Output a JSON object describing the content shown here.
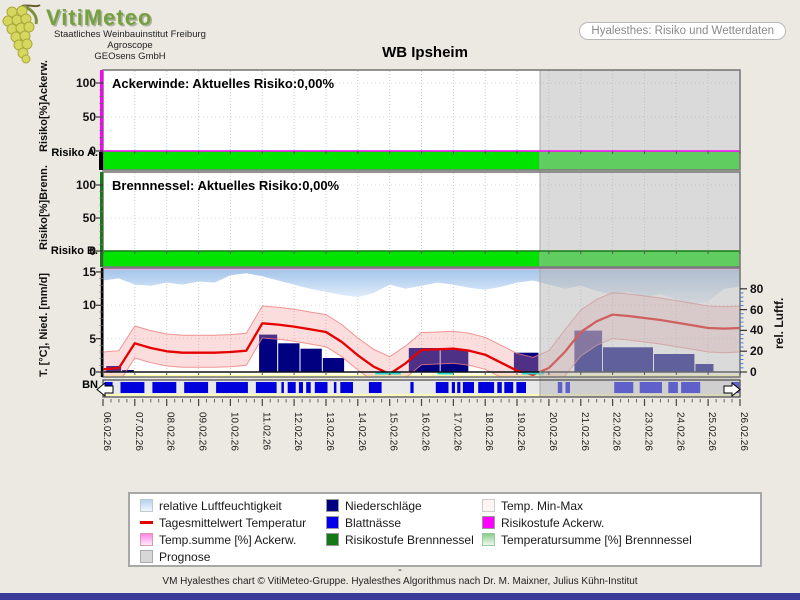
{
  "header": {
    "logo_title": "VitiMeteo",
    "logo_lines": [
      "Staatliches Weinbauinstitut Freiburg",
      "Agroscope",
      "GEOsens GmbH"
    ],
    "view_selector": "Hyalesthes: Risiko und Wetterdaten",
    "title": "WB Ipsheim"
  },
  "axis": {
    "dates": [
      "06.02.26",
      "07.02.26",
      "08.02.26",
      "09.02.26",
      "10.02.26",
      "11.02.26",
      "12.02.26",
      "13.02.26",
      "14.02.26",
      "15.02.26",
      "16.02.26",
      "17.02.26",
      "18.02.26",
      "19.02.26",
      "20.02.26",
      "21.02.26",
      "22.02.26",
      "23.02.26",
      "24.02.26",
      "25.02.26",
      "26.02.26"
    ]
  },
  "chart_data": [
    {
      "type": "area",
      "id": "risk-ackerwinde",
      "title": "Ackerwinde: Aktuelles Risiko:0,00%",
      "ylabel": "Risiko[%]Ackerw.",
      "band_label": "Risiko A.",
      "yticks": [
        0,
        50,
        100
      ],
      "ylim": [
        0,
        110
      ],
      "series": [
        {
          "name": "Risikostufe Ackerw.",
          "value_percent": 0.0,
          "note": "constant 0% risk for all dates, shown as green band at 0"
        }
      ]
    },
    {
      "type": "area",
      "id": "risk-brennnessel",
      "title": "Brennnessel: Aktuelles Risiko:0,00%",
      "ylabel": "Risiko[%]Brenn.",
      "band_label": "Risiko B.",
      "yticks": [
        0,
        50,
        100
      ],
      "ylim": [
        0,
        110
      ],
      "series": [
        {
          "name": "Risikostufe Brennnessel",
          "value_percent": 0.0,
          "note": "constant 0% risk for all dates, shown as green band at 0"
        }
      ]
    },
    {
      "type": "composite",
      "id": "weather",
      "ylabel_left": "T. [°C], Nied. [mm/d]",
      "ylabel_right": "rel. Luftf.",
      "bn_label": "BN",
      "yticks_left": [
        0,
        5,
        10,
        15
      ],
      "yticks_right": [
        0,
        20,
        40,
        60,
        80
      ],
      "temp_axis_range": [
        -0.8,
        15.6
      ],
      "humidity_axis_range": [
        0,
        100
      ],
      "x_unit": "day index relative to 06.02.26",
      "prognosis_start_day": 13.7,
      "x": [
        0,
        0.5,
        1,
        1.5,
        2,
        2.5,
        3,
        3.5,
        4,
        4.5,
        5,
        5.5,
        6,
        6.5,
        7,
        7.5,
        8,
        8.5,
        9,
        9.5,
        10,
        10.5,
        11,
        11.5,
        12,
        12.5,
        13,
        13.5,
        14,
        14.5,
        15,
        15.5,
        16,
        16.5,
        17,
        17.5,
        18,
        18.5,
        19,
        19.5,
        20
      ],
      "temperature_mean": [
        0.4,
        0.6,
        4.3,
        3.6,
        3.1,
        2.9,
        2.9,
        2.9,
        3.0,
        3.2,
        7.3,
        7.1,
        6.8,
        6.4,
        6.0,
        4.5,
        2.5,
        0.8,
        -0.3,
        1.3,
        3.3,
        3.4,
        3.5,
        3.2,
        2.6,
        1.4,
        0.2,
        -0.4,
        0.6,
        3.0,
        6.0,
        7.6,
        8.6,
        8.4,
        8.1,
        7.8,
        7.4,
        7.0,
        6.6,
        6.5,
        6.6
      ],
      "temperature_min": [
        -1.8,
        -1.6,
        2.1,
        1.4,
        0.9,
        0.7,
        0.7,
        0.7,
        0.8,
        1.0,
        5.1,
        4.9,
        4.6,
        4.2,
        3.8,
        2.3,
        0.3,
        -1.4,
        -2.5,
        -0.9,
        1.1,
        1.2,
        1.3,
        1.0,
        0.4,
        -0.8,
        -2.0,
        -2.6,
        -1.6,
        -0.6,
        2.4,
        4.0,
        5.0,
        4.8,
        4.5,
        4.2,
        3.8,
        3.4,
        3.0,
        2.9,
        3.0
      ],
      "temperature_max": [
        3.0,
        3.2,
        6.9,
        6.2,
        5.7,
        5.5,
        5.5,
        5.5,
        5.6,
        5.8,
        9.9,
        9.7,
        9.4,
        9.0,
        8.6,
        7.1,
        5.1,
        3.4,
        2.3,
        3.9,
        5.9,
        6.0,
        6.1,
        5.8,
        5.2,
        4.0,
        2.8,
        2.2,
        3.2,
        6.3,
        9.3,
        10.9,
        11.9,
        11.7,
        11.4,
        11.1,
        10.7,
        10.3,
        9.9,
        9.8,
        9.9
      ],
      "humidity_percent": [
        88,
        90,
        84,
        83,
        86,
        84,
        87,
        86,
        93,
        95,
        92,
        88,
        84,
        80,
        77,
        74,
        72,
        76,
        84,
        80,
        83,
        86,
        84,
        81,
        79,
        82,
        86,
        88,
        84,
        80,
        83,
        78,
        74,
        77,
        72,
        75,
        70,
        64,
        68,
        80,
        82
      ],
      "precipitation_bars": [
        [
          0.1,
          0.6,
          0.9
        ],
        [
          0.6,
          1.0,
          0.3
        ],
        [
          4.9,
          5.5,
          5.6
        ],
        [
          5.5,
          6.2,
          4.3
        ],
        [
          6.2,
          6.9,
          3.5
        ],
        [
          6.9,
          7.6,
          2.1
        ],
        [
          9.6,
          10.6,
          3.6
        ],
        [
          10.6,
          11.5,
          3.3
        ],
        [
          12.9,
          13.7,
          2.9
        ],
        [
          14.8,
          15.7,
          6.2
        ],
        [
          15.7,
          17.3,
          3.7
        ],
        [
          17.3,
          18.6,
          2.7
        ],
        [
          18.6,
          19.2,
          1.2
        ]
      ],
      "leaf_wetness_segments": [
        [
          0.05,
          0.3
        ],
        [
          0.55,
          1.3
        ],
        [
          1.55,
          2.3
        ],
        [
          2.55,
          3.3
        ],
        [
          3.55,
          4.55
        ],
        [
          4.8,
          5.45
        ],
        [
          5.6,
          5.68
        ],
        [
          5.8,
          6.05
        ],
        [
          6.15,
          6.28
        ],
        [
          6.38,
          6.52
        ],
        [
          6.65,
          7.05
        ],
        [
          7.25,
          7.33
        ],
        [
          7.45,
          7.85
        ],
        [
          8.35,
          8.75
        ],
        [
          9.65,
          9.75
        ],
        [
          10.45,
          10.85
        ],
        [
          10.95,
          11.05
        ],
        [
          11.12,
          11.22
        ],
        [
          11.3,
          11.65
        ],
        [
          11.78,
          12.28
        ],
        [
          12.38,
          12.52
        ],
        [
          12.6,
          12.88
        ],
        [
          12.98,
          13.28
        ],
        [
          14.28,
          14.42
        ],
        [
          14.52,
          14.66
        ],
        [
          16.05,
          16.65
        ],
        [
          16.85,
          17.55
        ],
        [
          17.75,
          18.05
        ],
        [
          18.15,
          18.75
        ],
        [
          19.75,
          19.98
        ]
      ],
      "frost_marks": [
        [
          8.55,
          9.35
        ],
        [
          10.5,
          11.0
        ],
        [
          13.15,
          13.85
        ]
      ]
    }
  ],
  "legend": {
    "items": [
      {
        "label": "relative Luftfeuchtigkeit",
        "swatch": "humidity",
        "col": 1
      },
      {
        "label": "Tagesmittelwert Temperatur",
        "swatch": "redline",
        "col": 1
      },
      {
        "label": "Temp.summe [%] Ackerw.",
        "swatch": "pink-gradient",
        "col": 1
      },
      {
        "label": "Prognose",
        "swatch": "gray",
        "col": 1
      },
      {
        "label": "Niederschläge",
        "swatch": "navy",
        "col": 2
      },
      {
        "label": "Blattnässe",
        "swatch": "blue",
        "col": 2
      },
      {
        "label": "Risikostufe Brennnessel",
        "swatch": "darkgreen",
        "col": 2
      },
      {
        "label": "Temp. Min-Max",
        "swatch": "minmax",
        "col": 3
      },
      {
        "label": "Risikostufe Ackerw.",
        "swatch": "magenta",
        "col": 3
      },
      {
        "label": "Temperatursumme [%] Brennnessel",
        "swatch": "lightgreen-gradient",
        "col": 3
      }
    ]
  },
  "footer": {
    "dash": "-",
    "credit": "VM Hyalesthes chart © VitiMeteo-Gruppe. Hyalesthes Algorithmus nach Dr. M. Maixner, Julius Kühn-Institut"
  },
  "colors": {
    "page_bg": "#ece9e2",
    "risk_band_green": "#00e400",
    "magenta": "#ff00ff",
    "risk_green_dark": "#157a15",
    "navy": "#000080",
    "wetness_blue": "#0000dd",
    "temp_red": "#e60000",
    "minmax_fill": "rgba(242,150,150,0.32)",
    "minmax_edge": "rgba(238,125,125,0.8)",
    "humidity_top": "#a3c4ea",
    "humidity_bottom": "#f2f8ff",
    "prognosis_overlay": "rgba(184,184,184,0.52)",
    "grid": "#cccccc",
    "frame": "#7a7a7a",
    "yellow_line": "#ffff9e",
    "cyan_mark": "#2ad4d4",
    "pink_line": "#f7a8e8",
    "footer_bar": "#3a3a99"
  }
}
